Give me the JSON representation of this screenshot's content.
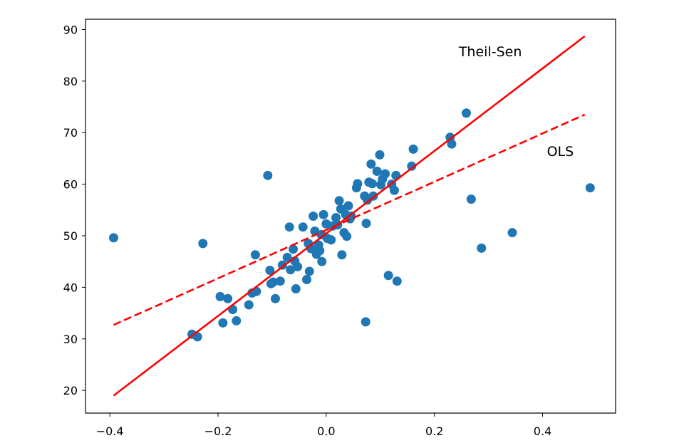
{
  "chart_data": {
    "type": "scatter",
    "title": "",
    "xlabel": "",
    "ylabel": "",
    "xlim": [
      -0.445,
      0.535
    ],
    "ylim": [
      15.6,
      92.0
    ],
    "x_ticks": [
      -0.4,
      -0.2,
      0.0,
      0.2,
      0.4
    ],
    "x_tick_labels": [
      "−0.4",
      "−0.2",
      "0.0",
      "0.2",
      "0.4"
    ],
    "y_ticks": [
      20,
      30,
      40,
      50,
      60,
      70,
      80,
      90
    ],
    "y_tick_labels": [
      "20",
      "30",
      "40",
      "50",
      "60",
      "70",
      "80",
      "90"
    ],
    "grid": false,
    "legend": false,
    "colors": {
      "points": "#1f77b4",
      "lines": "#ff0000",
      "axes": "#000000"
    },
    "series": [
      {
        "type": "scatter",
        "values": [
          [
            -0.393,
            49.6
          ],
          [
            -0.248,
            30.9
          ],
          [
            -0.238,
            30.4
          ],
          [
            -0.228,
            48.5
          ],
          [
            -0.196,
            38.2
          ],
          [
            -0.191,
            33.1
          ],
          [
            -0.182,
            37.8
          ],
          [
            -0.173,
            35.7
          ],
          [
            -0.166,
            33.5
          ],
          [
            -0.143,
            36.6
          ],
          [
            -0.137,
            38.9
          ],
          [
            -0.131,
            46.3
          ],
          [
            -0.129,
            39.2
          ],
          [
            -0.108,
            61.7
          ],
          [
            -0.104,
            43.3
          ],
          [
            -0.102,
            40.7
          ],
          [
            -0.098,
            41.0
          ],
          [
            -0.094,
            37.8
          ],
          [
            -0.085,
            41.2
          ],
          [
            -0.081,
            44.3
          ],
          [
            -0.072,
            45.8
          ],
          [
            -0.068,
            51.7
          ],
          [
            -0.066,
            43.4
          ],
          [
            -0.061,
            47.4
          ],
          [
            -0.058,
            45.1
          ],
          [
            -0.056,
            39.7
          ],
          [
            -0.053,
            44.0
          ],
          [
            -0.043,
            51.7
          ],
          [
            -0.036,
            41.5
          ],
          [
            -0.033,
            48.5
          ],
          [
            -0.031,
            43.1
          ],
          [
            -0.028,
            47.5
          ],
          [
            -0.024,
            53.8
          ],
          [
            -0.021,
            50.9
          ],
          [
            -0.018,
            46.4
          ],
          [
            -0.014,
            48.2
          ],
          [
            -0.012,
            47.1
          ],
          [
            -0.009,
            50.2
          ],
          [
            -0.008,
            45.0
          ],
          [
            -0.005,
            54.1
          ],
          [
            0.0,
            52.3
          ],
          [
            0.002,
            49.5
          ],
          [
            0.009,
            49.2
          ],
          [
            0.012,
            51.9
          ],
          [
            0.018,
            53.5
          ],
          [
            0.021,
            52.1
          ],
          [
            0.024,
            56.8
          ],
          [
            0.027,
            55.2
          ],
          [
            0.029,
            46.3
          ],
          [
            0.033,
            50.6
          ],
          [
            0.036,
            54.1
          ],
          [
            0.038,
            49.9
          ],
          [
            0.041,
            55.8
          ],
          [
            0.044,
            53.3
          ],
          [
            0.046,
            53.8
          ],
          [
            0.056,
            59.3
          ],
          [
            0.058,
            60.1
          ],
          [
            0.071,
            57.7
          ],
          [
            0.074,
            52.4
          ],
          [
            0.076,
            56.9
          ],
          [
            0.073,
            33.3
          ],
          [
            0.079,
            60.4
          ],
          [
            0.083,
            63.9
          ],
          [
            0.085,
            60.1
          ],
          [
            0.087,
            57.7
          ],
          [
            0.094,
            62.5
          ],
          [
            0.099,
            65.7
          ],
          [
            0.101,
            59.9
          ],
          [
            0.104,
            61.0
          ],
          [
            0.109,
            62.0
          ],
          [
            0.115,
            42.3
          ],
          [
            0.121,
            60.0
          ],
          [
            0.126,
            58.8
          ],
          [
            0.129,
            61.7
          ],
          [
            0.131,
            41.2
          ],
          [
            0.158,
            63.5
          ],
          [
            0.161,
            66.8
          ],
          [
            0.229,
            69.1
          ],
          [
            0.232,
            67.8
          ],
          [
            0.259,
            73.8
          ],
          [
            0.268,
            57.1
          ],
          [
            0.287,
            47.6
          ],
          [
            0.344,
            50.6
          ],
          [
            0.488,
            59.3
          ]
        ]
      },
      {
        "type": "line",
        "name": "Theil-Sen",
        "x": [
          -0.393,
          0.478
        ],
        "y": [
          19.0,
          88.7
        ],
        "dash": "solid"
      },
      {
        "type": "line",
        "name": "OLS",
        "x": [
          -0.393,
          0.478
        ],
        "y": [
          32.7,
          73.5
        ],
        "dash": "dashed"
      }
    ],
    "annotations": [
      {
        "text": "Theil-Sen",
        "x": 0.245,
        "y": 84.8
      },
      {
        "text": "OLS",
        "x": 0.408,
        "y": 65.5
      }
    ]
  }
}
